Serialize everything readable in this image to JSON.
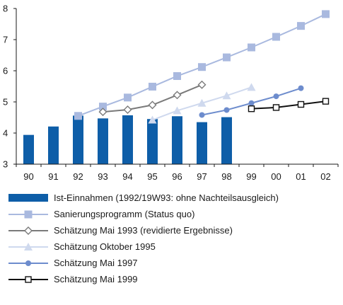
{
  "chart_data": {
    "type": "bar",
    "title": "",
    "xlabel": "",
    "ylabel": "",
    "categories": [
      "90",
      "91",
      "92",
      "93",
      "94",
      "95",
      "96",
      "97",
      "98",
      "99",
      "00",
      "01",
      "02"
    ],
    "ylim": [
      3,
      8
    ],
    "yticks": [
      3,
      4,
      5,
      6,
      7,
      8
    ],
    "grid": false,
    "legend_position": "bottom",
    "series": [
      {
        "name": "Ist-Einnahmen (1992/19W93: ohne Nachteilsausgleich)",
        "kind": "bar",
        "color": "#0e5ea8",
        "marker": "bar",
        "values": [
          3.94,
          4.21,
          4.56,
          4.47,
          4.57,
          4.45,
          4.54,
          4.35,
          4.51,
          null,
          null,
          null,
          null
        ]
      },
      {
        "name": "Sanierungsprogramm (Status quo)",
        "kind": "line",
        "color": "#a9b9df",
        "marker": "square-filled",
        "values": [
          null,
          null,
          4.55,
          4.85,
          5.14,
          5.49,
          5.83,
          6.12,
          6.43,
          6.75,
          7.09,
          7.44,
          7.82
        ]
      },
      {
        "name": "Schätzung Mai 1993 (revidierte Ergebnisse)",
        "kind": "line",
        "color": "#7a7a7a",
        "marker": "diamond-open",
        "values": [
          null,
          null,
          null,
          4.68,
          4.75,
          4.9,
          5.22,
          5.55,
          null,
          null,
          null,
          null,
          null
        ]
      },
      {
        "name": "Schätzung Oktober 1995",
        "kind": "line",
        "color": "#cfd9ee",
        "marker": "triangle-filled",
        "values": [
          null,
          null,
          null,
          null,
          null,
          4.42,
          4.72,
          4.96,
          5.2,
          5.47,
          null,
          null,
          null
        ]
      },
      {
        "name": "Schätzung Mai 1997",
        "kind": "line",
        "color": "#6d8ccd",
        "marker": "circle-filled",
        "values": [
          null,
          null,
          null,
          null,
          null,
          null,
          null,
          4.58,
          4.74,
          4.96,
          5.18,
          5.44,
          null
        ]
      },
      {
        "name": "Schätzung Mai 1999",
        "kind": "line",
        "color": "#111111",
        "marker": "square-open",
        "values": [
          null,
          null,
          null,
          null,
          null,
          null,
          null,
          null,
          null,
          4.78,
          4.82,
          4.92,
          5.02
        ]
      }
    ]
  }
}
